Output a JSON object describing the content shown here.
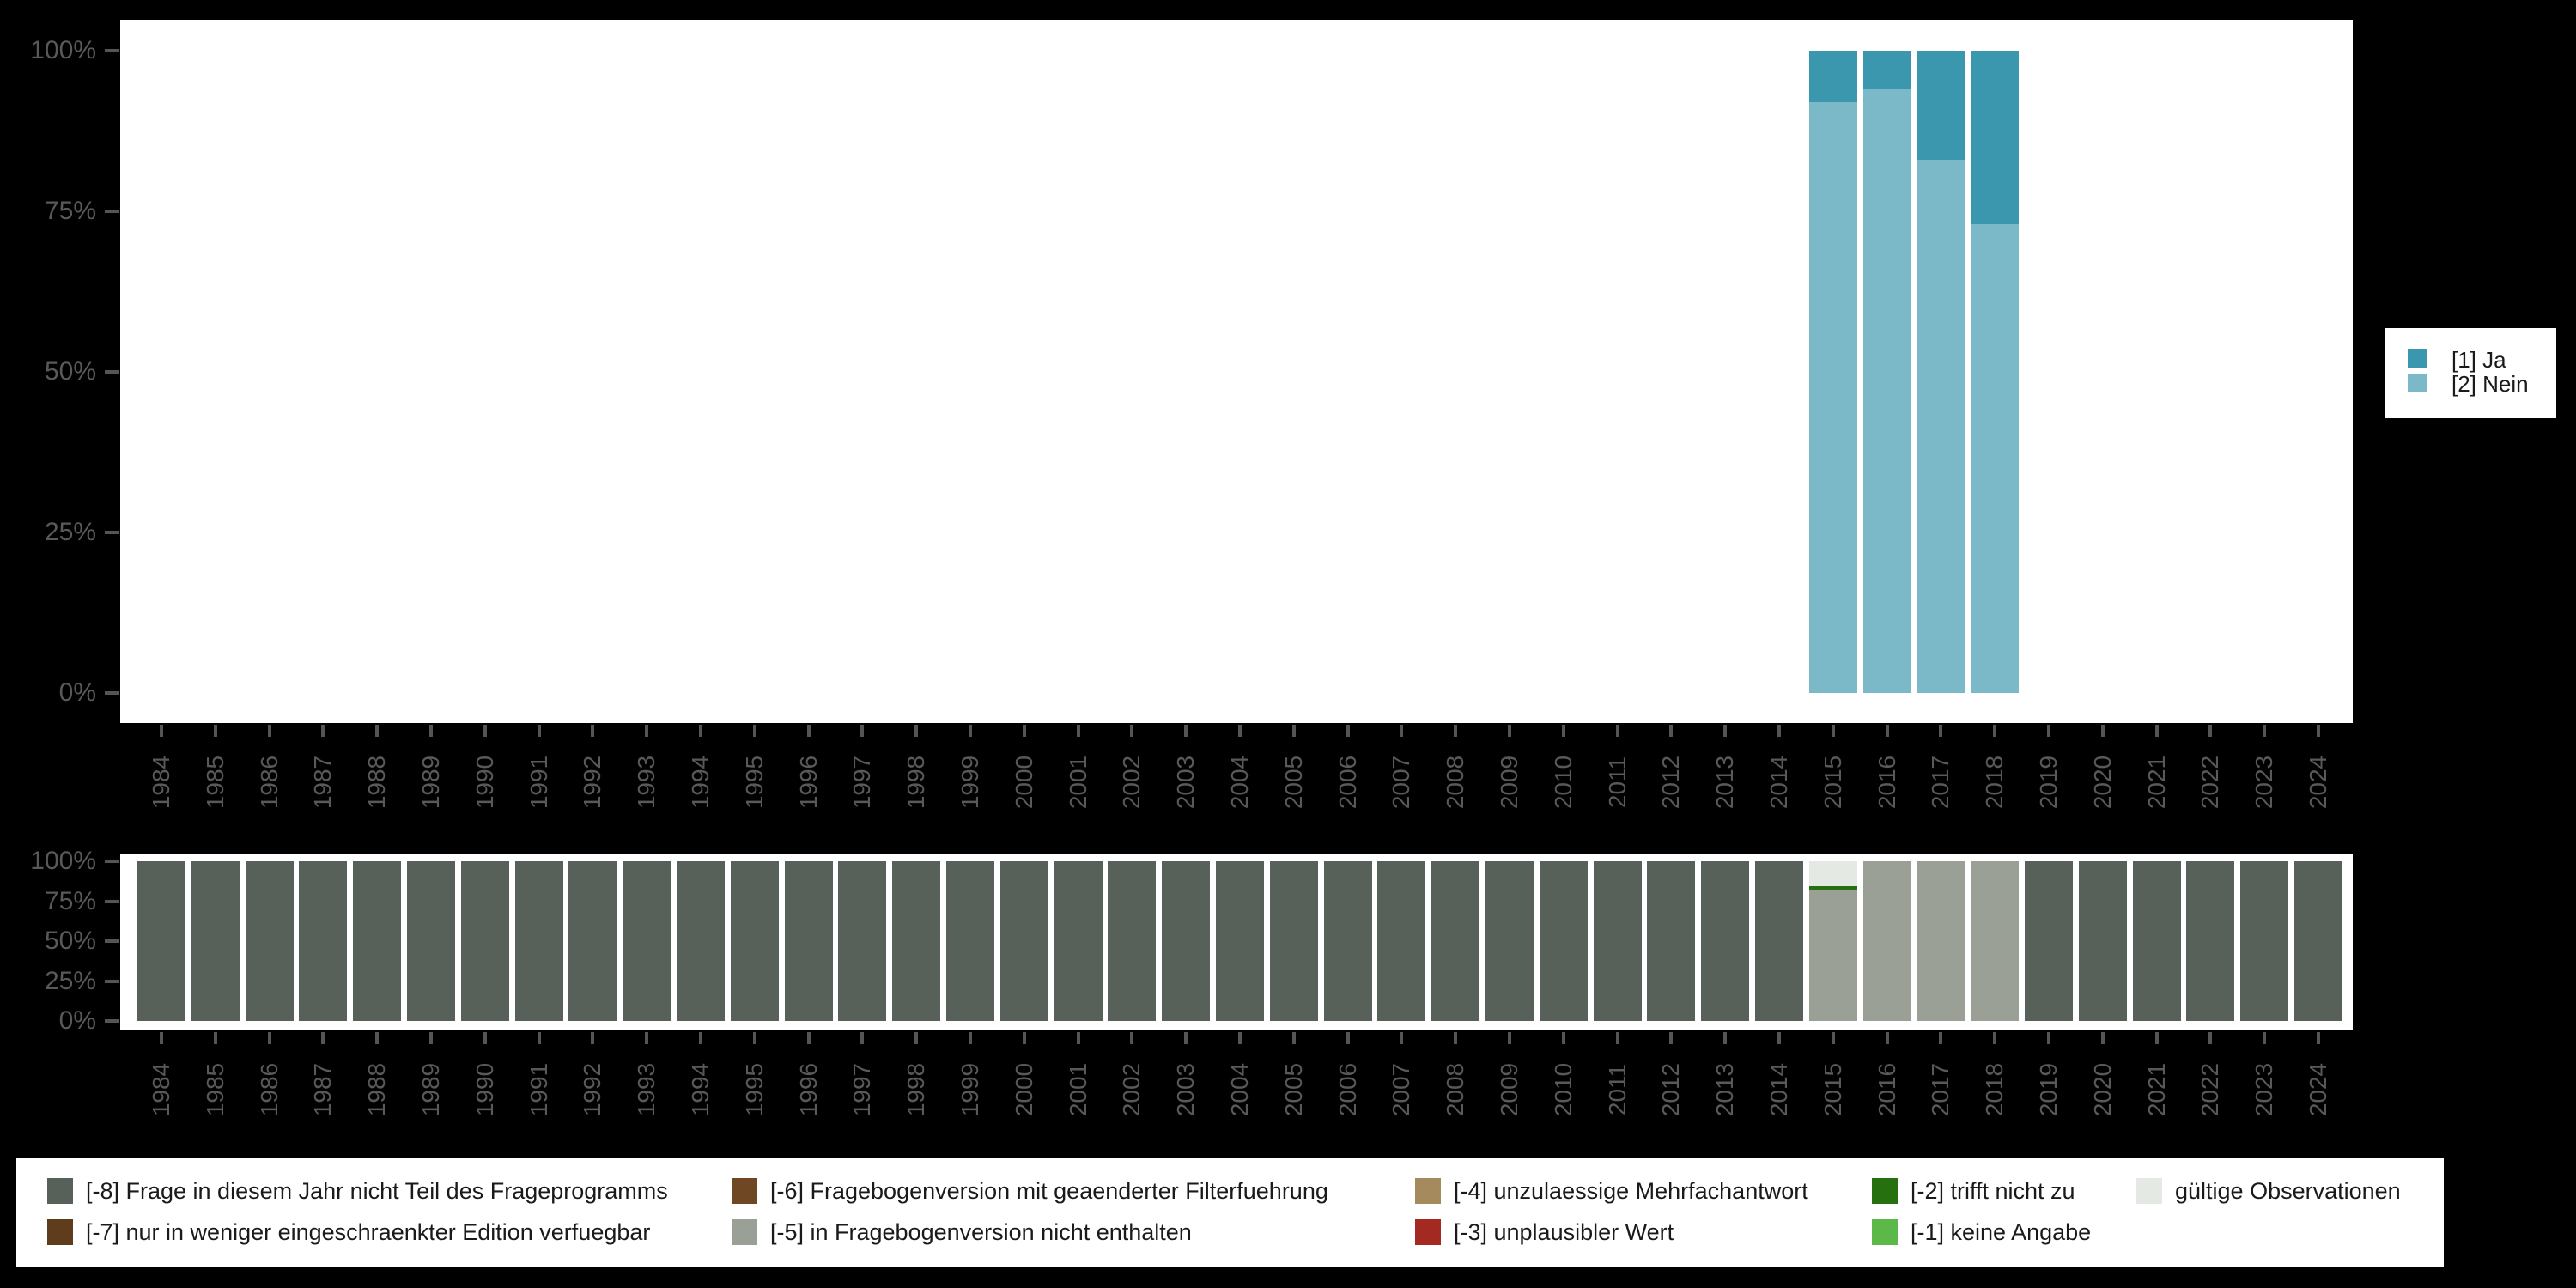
{
  "colors": {
    "background": "#000000",
    "plot_background": "#ffffff",
    "axis_text": "#595959",
    "tick": "#555555",
    "ja": "#3a97ae",
    "nein": "#7cb9c8",
    "missing_8": "#58605a",
    "missing_7": "#5e3c1c",
    "missing_6": "#6f4823",
    "missing_5": "#9aa096",
    "missing_4": "#a58a5e",
    "missing_3": "#a42a21",
    "missing_2": "#26700f",
    "missing_1": "#5cb848",
    "valid": "#e5e9e3"
  },
  "top_legend": {
    "items": [
      {
        "label": "[1] Ja",
        "color": "#3a97ae"
      },
      {
        "label": "[2] Nein",
        "color": "#7cb9c8"
      }
    ]
  },
  "missing_legend": {
    "items": [
      {
        "label": "[-8] Frage in diesem Jahr nicht Teil des Frageprogramms",
        "color": "#58605a",
        "row": 1,
        "col": 1
      },
      {
        "label": "[-7] nur in weniger eingeschraenkter Edition verfuegbar",
        "color": "#5e3c1c",
        "row": 2,
        "col": 1
      },
      {
        "label": "[-6] Fragebogenversion mit geaenderter Filterfuehrung",
        "color": "#6f4823",
        "row": 1,
        "col": 2
      },
      {
        "label": "[-5] in Fragebogenversion nicht enthalten",
        "color": "#9aa096",
        "row": 2,
        "col": 2
      },
      {
        "label": "[-4] unzulaessige Mehrfachantwort",
        "color": "#a58a5e",
        "row": 1,
        "col": 3
      },
      {
        "label": "[-3] unplausibler Wert",
        "color": "#a42a21",
        "row": 2,
        "col": 3
      },
      {
        "label": "[-2] trifft nicht zu",
        "color": "#26700f",
        "row": 1,
        "col": 4
      },
      {
        "label": "[-1] keine Angabe",
        "color": "#5cb848",
        "row": 2,
        "col": 4
      },
      {
        "label": "gültige Observationen",
        "color": "#e5e9e3",
        "row": 1,
        "col": 5
      }
    ]
  },
  "chart_data": [
    {
      "name": "value-distribution",
      "type": "bar",
      "stacked": true,
      "unit": "percent",
      "ylim": [
        0,
        100
      ],
      "grid": false,
      "legend_position": "right",
      "y_tick_labels": [
        "0%",
        "25%",
        "50%",
        "75%",
        "100%"
      ],
      "y_tick_values": [
        0,
        25,
        50,
        75,
        100
      ],
      "categories": [
        "1984",
        "1985",
        "1986",
        "1987",
        "1988",
        "1989",
        "1990",
        "1991",
        "1992",
        "1993",
        "1994",
        "1995",
        "1996",
        "1997",
        "1998",
        "1999",
        "2000",
        "2001",
        "2002",
        "2003",
        "2004",
        "2005",
        "2006",
        "2007",
        "2008",
        "2009",
        "2010",
        "2011",
        "2012",
        "2013",
        "2014",
        "2015",
        "2016",
        "2017",
        "2018",
        "2019",
        "2020",
        "2021",
        "2022",
        "2023",
        "2024"
      ],
      "series": [
        {
          "name": "[1] Ja",
          "color": "#3a97ae",
          "values": [
            null,
            null,
            null,
            null,
            null,
            null,
            null,
            null,
            null,
            null,
            null,
            null,
            null,
            null,
            null,
            null,
            null,
            null,
            null,
            null,
            null,
            null,
            null,
            null,
            null,
            null,
            null,
            null,
            null,
            null,
            null,
            8,
            6,
            17,
            27,
            null,
            null,
            null,
            null,
            null,
            null
          ]
        },
        {
          "name": "[2] Nein",
          "color": "#7cb9c8",
          "values": [
            null,
            null,
            null,
            null,
            null,
            null,
            null,
            null,
            null,
            null,
            null,
            null,
            null,
            null,
            null,
            null,
            null,
            null,
            null,
            null,
            null,
            null,
            null,
            null,
            null,
            null,
            null,
            null,
            null,
            null,
            null,
            92,
            94,
            83,
            73,
            null,
            null,
            null,
            null,
            null,
            null
          ]
        }
      ]
    },
    {
      "name": "missing-values-distribution",
      "type": "bar",
      "stacked": true,
      "unit": "percent",
      "ylim": [
        0,
        100
      ],
      "grid": false,
      "legend_position": "bottom",
      "y_tick_labels": [
        "0%",
        "25%",
        "50%",
        "75%",
        "100%"
      ],
      "y_tick_values": [
        0,
        25,
        50,
        75,
        100
      ],
      "categories": [
        "1984",
        "1985",
        "1986",
        "1987",
        "1988",
        "1989",
        "1990",
        "1991",
        "1992",
        "1993",
        "1994",
        "1995",
        "1996",
        "1997",
        "1998",
        "1999",
        "2000",
        "2001",
        "2002",
        "2003",
        "2004",
        "2005",
        "2006",
        "2007",
        "2008",
        "2009",
        "2010",
        "2011",
        "2012",
        "2013",
        "2014",
        "2015",
        "2016",
        "2017",
        "2018",
        "2019",
        "2020",
        "2021",
        "2022",
        "2023",
        "2024"
      ],
      "series": [
        {
          "name": "[-8] Frage in diesem Jahr nicht Teil des Frageprogramms",
          "color": "#58605a",
          "values": [
            100,
            100,
            100,
            100,
            100,
            100,
            100,
            100,
            100,
            100,
            100,
            100,
            100,
            100,
            100,
            100,
            100,
            100,
            100,
            100,
            100,
            100,
            100,
            100,
            100,
            100,
            100,
            100,
            100,
            100,
            100,
            0,
            0,
            0,
            0,
            100,
            100,
            100,
            100,
            100,
            100
          ]
        },
        {
          "name": "[-5] in Fragebogenversion nicht enthalten",
          "color": "#9aa096",
          "values": [
            0,
            0,
            0,
            0,
            0,
            0,
            0,
            0,
            0,
            0,
            0,
            0,
            0,
            0,
            0,
            0,
            0,
            0,
            0,
            0,
            0,
            0,
            0,
            0,
            0,
            0,
            0,
            0,
            0,
            0,
            0,
            82.2,
            100,
            100,
            100,
            0,
            0,
            0,
            0,
            0,
            0
          ]
        },
        {
          "name": "[-2] trifft nicht zu",
          "color": "#26700f",
          "values": [
            0,
            0,
            0,
            0,
            0,
            0,
            0,
            0,
            0,
            0,
            0,
            0,
            0,
            0,
            0,
            0,
            0,
            0,
            0,
            0,
            0,
            0,
            0,
            0,
            0,
            0,
            0,
            0,
            0,
            0,
            0,
            2.3,
            0,
            0,
            0,
            0,
            0,
            0,
            0,
            0,
            0
          ]
        },
        {
          "name": "gültige Observationen",
          "color": "#e5e9e3",
          "values": [
            0,
            0,
            0,
            0,
            0,
            0,
            0,
            0,
            0,
            0,
            0,
            0,
            0,
            0,
            0,
            0,
            0,
            0,
            0,
            0,
            0,
            0,
            0,
            0,
            0,
            0,
            0,
            0,
            0,
            0,
            0,
            15.5,
            0,
            0,
            0,
            0,
            0,
            0,
            0,
            0,
            0
          ]
        }
      ]
    }
  ]
}
